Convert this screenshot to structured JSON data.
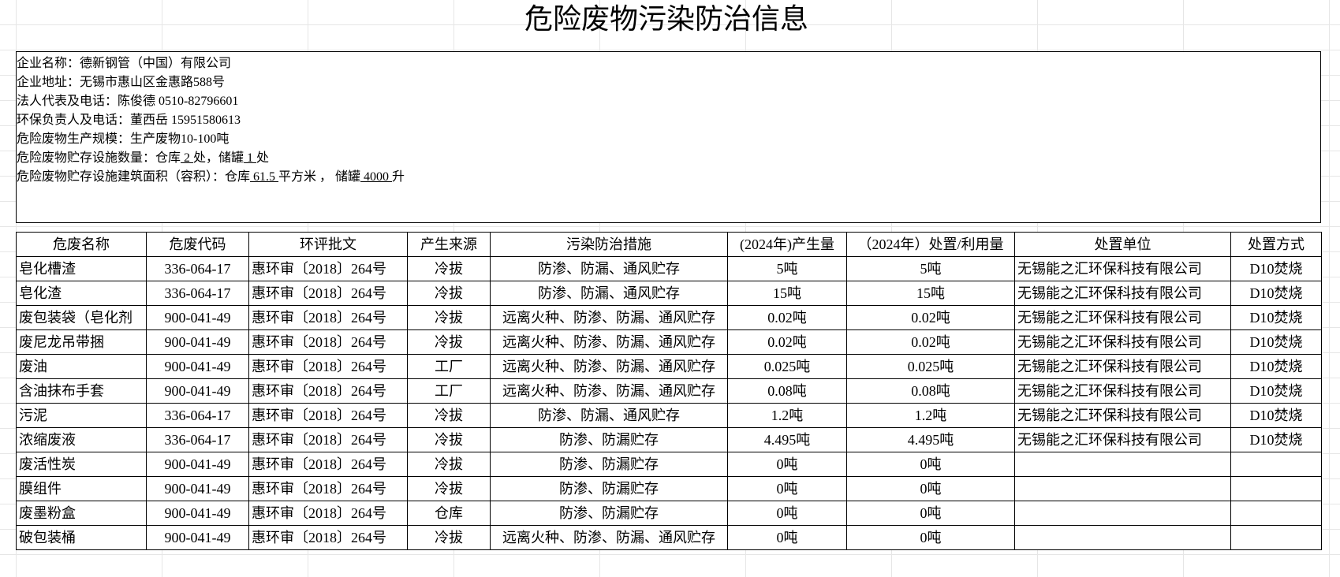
{
  "title": "危险废物污染防治信息",
  "company_info": [
    {
      "label": "企业名称：",
      "value": [
        "德新钢管（中国）有限公司"
      ]
    },
    {
      "label": "企业地址：",
      "value": [
        "无锡市惠山区金惠路588号"
      ]
    },
    {
      "label": "法人代表及电话：",
      "value": [
        "陈俊德 0510-82796601"
      ]
    },
    {
      "label": "环保负责人及电话：",
      "value": [
        "董西岳 15951580613"
      ]
    },
    {
      "label": "危险废物生产规模：",
      "value": [
        "生产废物10-100吨"
      ]
    },
    {
      "label": "危险废物贮存设施数量：",
      "value": [
        "仓库",
        " 2 ",
        "处，储罐",
        " 1 ",
        "处"
      ]
    },
    {
      "label": "危险废物贮存设施建筑面积（容积）：",
      "value": [
        "仓库",
        " 61.5 ",
        "平方米 ， 储罐",
        " 4000 ",
        "升"
      ]
    }
  ],
  "table": {
    "header": [
      "危废名称",
      "危废代码",
      "环评批文",
      "产生来源",
      "污染防治措施",
      "(2024年)产生量",
      "（2024年）处置/利用量",
      "处置单位",
      "处置方式"
    ],
    "rows": [
      [
        "皂化槽渣",
        "336-064-17",
        "惠环审〔2018〕264号",
        "冷拔",
        "防渗、防漏、通风贮存",
        "5吨",
        "5吨",
        "无锡能之汇环保科技有限公司",
        "D10焚烧"
      ],
      [
        "皂化渣",
        "336-064-17",
        "惠环审〔2018〕264号",
        "冷拔",
        "防渗、防漏、通风贮存",
        "15吨",
        "15吨",
        "无锡能之汇环保科技有限公司",
        "D10焚烧"
      ],
      [
        "废包装袋（皂化剂",
        "900-041-49",
        "惠环审〔2018〕264号",
        "冷拔",
        "远离火种、防渗、防漏、通风贮存",
        "0.02吨",
        "0.02吨",
        "无锡能之汇环保科技有限公司",
        "D10焚烧"
      ],
      [
        "废尼龙吊带捆",
        "900-041-49",
        "惠环审〔2018〕264号",
        "冷拔",
        "远离火种、防渗、防漏、通风贮存",
        "0.02吨",
        "0.02吨",
        "无锡能之汇环保科技有限公司",
        "D10焚烧"
      ],
      [
        "废油",
        "900-041-49",
        "惠环审〔2018〕264号",
        "工厂",
        "远离火种、防渗、防漏、通风贮存",
        "0.025吨",
        "0.025吨",
        "无锡能之汇环保科技有限公司",
        "D10焚烧"
      ],
      [
        "含油抹布手套",
        "900-041-49",
        "惠环审〔2018〕264号",
        "工厂",
        "远离火种、防渗、防漏、通风贮存",
        "0.08吨",
        "0.08吨",
        "无锡能之汇环保科技有限公司",
        "D10焚烧"
      ],
      [
        "污泥",
        "336-064-17",
        "惠环审〔2018〕264号",
        "冷拔",
        "防渗、防漏、通风贮存",
        "1.2吨",
        "1.2吨",
        "无锡能之汇环保科技有限公司",
        "D10焚烧"
      ],
      [
        "浓缩废液",
        "336-064-17",
        "惠环审〔2018〕264号",
        "冷拔",
        "防渗、防漏贮存",
        "4.495吨",
        "4.495吨",
        "无锡能之汇环保科技有限公司",
        "D10焚烧"
      ],
      [
        "废活性炭",
        "900-041-49",
        "惠环审〔2018〕264号",
        "冷拔",
        "防渗、防漏贮存",
        "0吨",
        "0吨",
        null,
        null
      ],
      [
        "膜组件",
        "900-041-49",
        "惠环审〔2018〕264号",
        "冷拔",
        "防渗、防漏贮存",
        "0吨",
        "0吨",
        null,
        null
      ],
      [
        "废墨粉盒",
        "900-041-49",
        "惠环审〔2018〕264号",
        "仓库",
        "防渗、防漏贮存",
        "0吨",
        "0吨",
        null,
        null
      ],
      [
        "破包装桶",
        "900-041-49",
        "惠环审〔2018〕264号",
        "冷拔",
        "远离火种、防渗、防漏、通风贮存",
        "0吨",
        "0吨",
        null,
        null
      ]
    ]
  }
}
